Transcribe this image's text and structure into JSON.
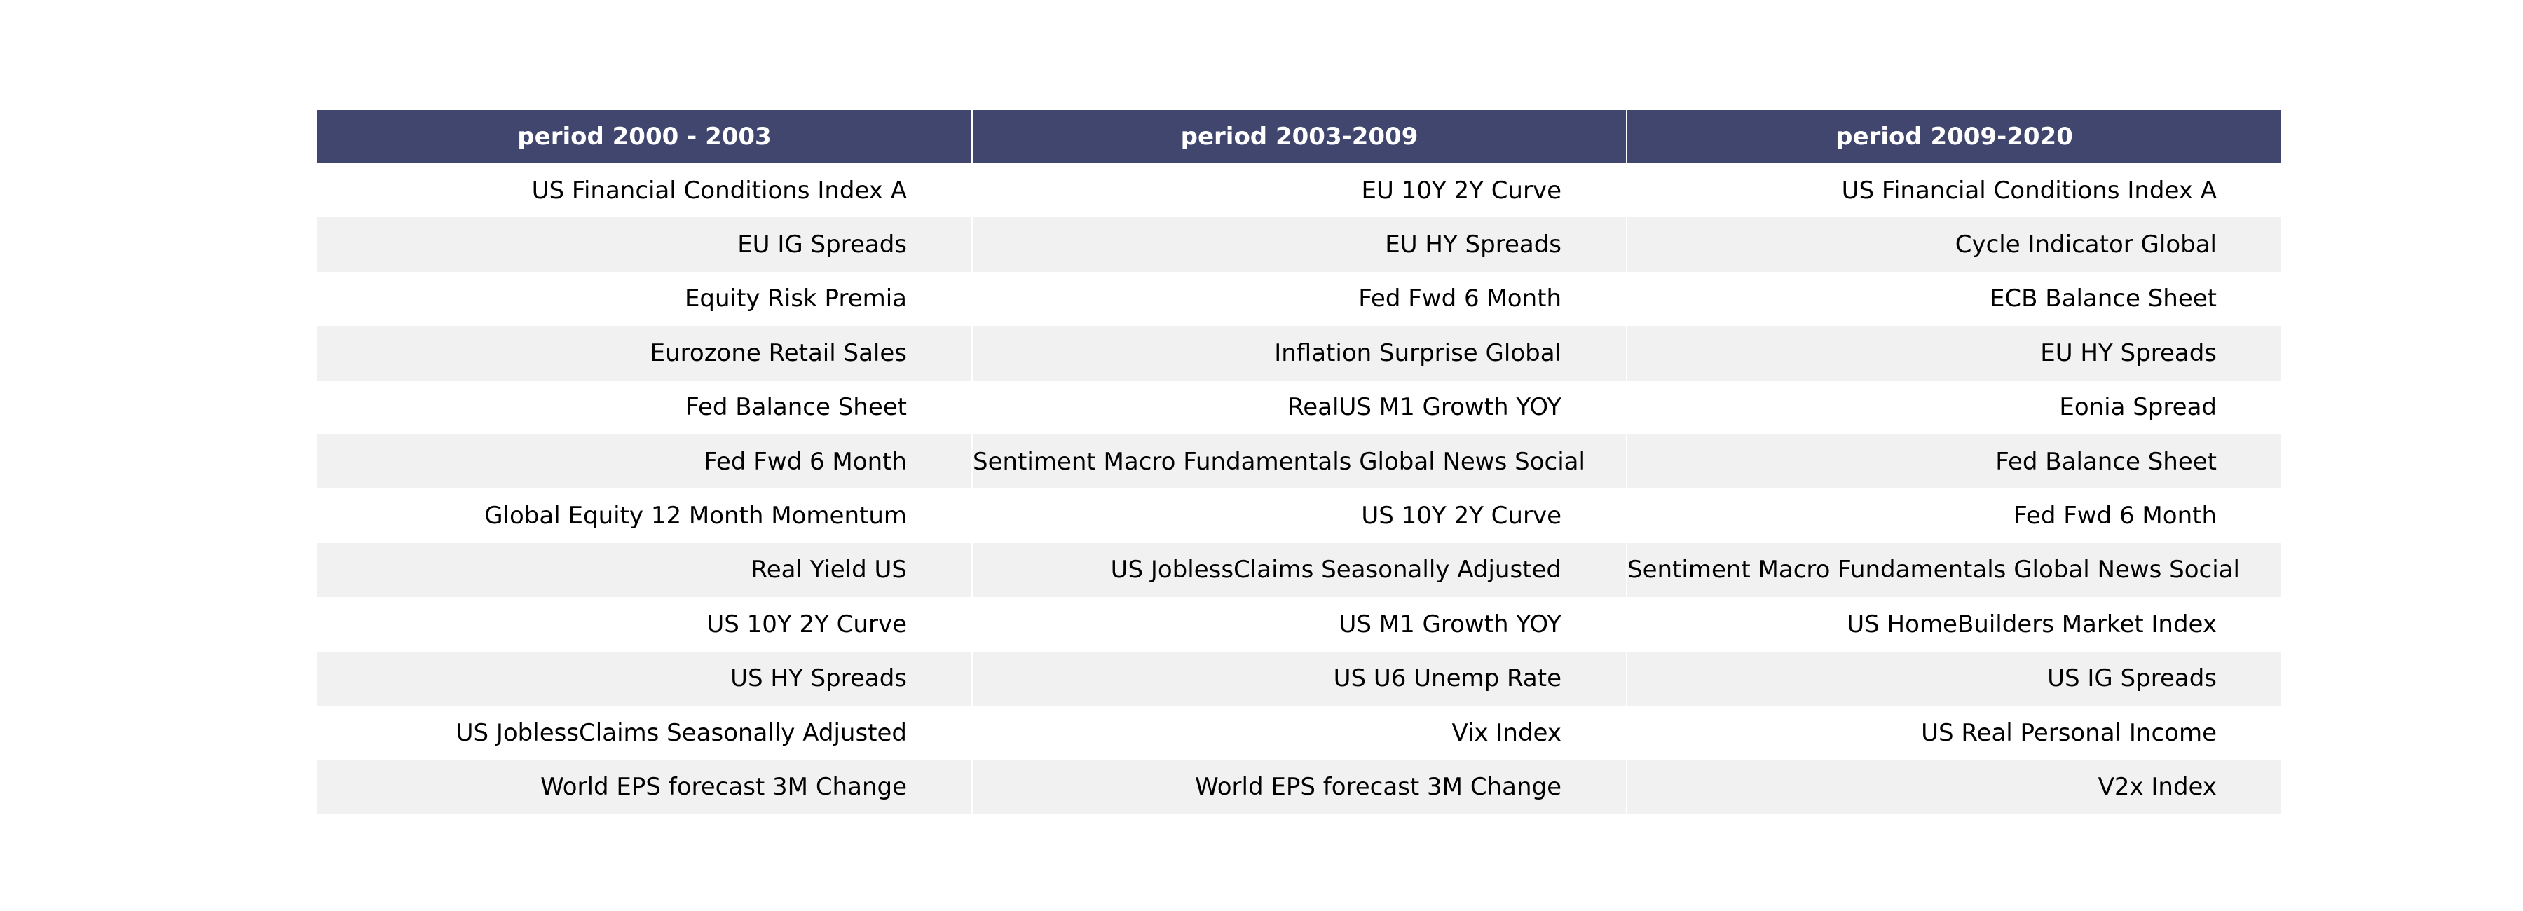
{
  "colors": {
    "header_bg": "#40466e",
    "header_text": "#ffffff",
    "row_alt_bg": "#f1f1f2",
    "row_bg": "#ffffff"
  },
  "chart_data": {
    "type": "table",
    "columns": [
      "period 2000 - 2003",
      "period 2003-2009",
      "period 2009-2020"
    ],
    "rows": [
      [
        "US Financial Conditions Index A",
        "EU 10Y 2Y Curve",
        "US Financial Conditions Index A"
      ],
      [
        "EU IG Spreads",
        "EU HY Spreads",
        "Cycle Indicator Global"
      ],
      [
        "Equity Risk Premia",
        "Fed Fwd 6 Month",
        "ECB Balance Sheet"
      ],
      [
        "Eurozone Retail Sales",
        "Inflation Surprise Global",
        "EU HY Spreads"
      ],
      [
        "Fed Balance Sheet",
        "RealUS M1 Growth YOY",
        "Eonia Spread"
      ],
      [
        "Fed Fwd 6 Month",
        "Sentiment Macro Fundamentals Global News Social",
        "Fed Balance Sheet"
      ],
      [
        "Global Equity 12 Month Momentum",
        "US 10Y 2Y Curve",
        "Fed Fwd 6 Month"
      ],
      [
        "Real Yield US",
        "US JoblessClaims Seasonally Adjusted",
        "Sentiment Macro Fundamentals Global News Social"
      ],
      [
        "US 10Y 2Y Curve",
        "US M1 Growth YOY",
        "US HomeBuilders Market Index"
      ],
      [
        "US HY Spreads",
        "US U6 Unemp Rate",
        "US IG Spreads"
      ],
      [
        "US JoblessClaims Seasonally Adjusted",
        "Vix Index",
        "US Real Personal Income"
      ],
      [
        "World EPS forecast 3M Change",
        "World EPS forecast 3M Change",
        "V2x Index"
      ]
    ]
  }
}
